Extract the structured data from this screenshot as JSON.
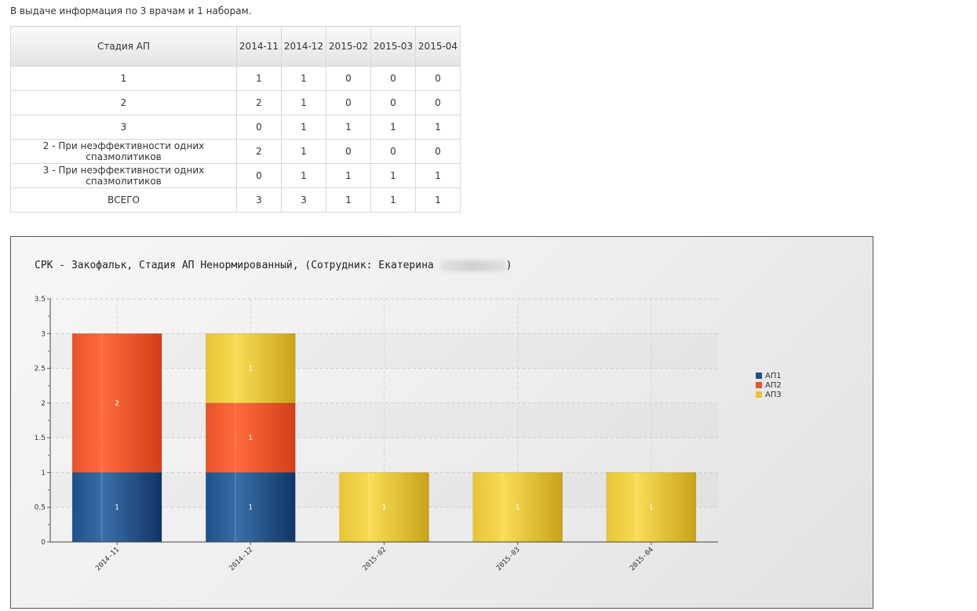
{
  "info_text": "В выдаче информация по 3 врачам и 1 наборам.",
  "table": {
    "header_stage": "Стадия АП",
    "months": [
      "2014-11",
      "2014-12",
      "2015-02",
      "2015-03",
      "2015-04"
    ],
    "rows": [
      {
        "stage": "1",
        "values": [
          "1",
          "1",
          "0",
          "0",
          "0"
        ]
      },
      {
        "stage": "2",
        "values": [
          "2",
          "1",
          "0",
          "0",
          "0"
        ]
      },
      {
        "stage": "3",
        "values": [
          "0",
          "1",
          "1",
          "1",
          "1"
        ]
      },
      {
        "stage": "2 - При неэффективности одних спазмолитиков",
        "values": [
          "2",
          "1",
          "0",
          "0",
          "0"
        ]
      },
      {
        "stage": "3 - При неэффективности одних спазмолитиков",
        "values": [
          "0",
          "1",
          "1",
          "1",
          "1"
        ]
      },
      {
        "stage": "ВСЕГО",
        "values": [
          "3",
          "3",
          "1",
          "1",
          "1"
        ]
      }
    ]
  },
  "chart": {
    "title_prefix": "СРК - Закофальк, Стадия АП Ненормированный, (Сотрудник: Екатерина",
    "title_suffix": ")"
  },
  "chart_data": {
    "type": "bar",
    "stacked": true,
    "categories": [
      "2014-11",
      "2014-12",
      "2015-02",
      "2015-03",
      "2015-04"
    ],
    "series": [
      {
        "name": "АП1",
        "values": [
          1,
          1,
          0,
          0,
          0
        ],
        "color": "#1f4f8a"
      },
      {
        "name": "АП2",
        "values": [
          2,
          1,
          0,
          0,
          0
        ],
        "color": "#e8532a"
      },
      {
        "name": "АП3",
        "values": [
          0,
          1,
          1,
          1,
          1
        ],
        "color": "#e8c535"
      }
    ],
    "ylim": [
      0,
      3.5
    ],
    "yticks": [
      "0",
      "0.5",
      "1",
      "1.5",
      "2",
      "2.5",
      "3",
      "3.5"
    ],
    "grid": true,
    "legend_position": "right"
  }
}
